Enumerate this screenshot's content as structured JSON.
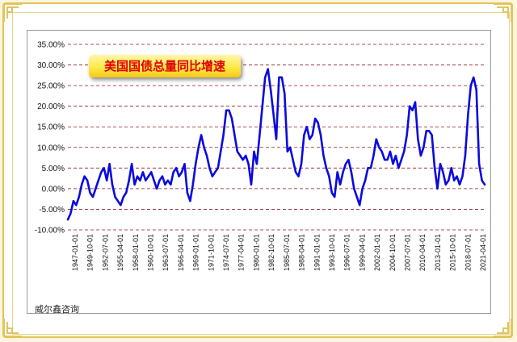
{
  "source_label": "威尔鑫咨询",
  "colors": {
    "line": "#0a0adf",
    "title_text": "#e00000",
    "gridline": "#8b1a1a",
    "badge_fill": "#ffe84a",
    "frame": "#e2c35e"
  },
  "chart_data": {
    "type": "line",
    "title": "美国国债总量同比增速",
    "xlabel": "",
    "ylabel": "",
    "ylim": [
      -0.1,
      0.35
    ],
    "ytick_values": [
      -0.1,
      -0.05,
      0.0,
      0.05,
      0.1,
      0.15,
      0.2,
      0.25,
      0.3,
      0.35
    ],
    "ytick_labels": [
      "-10.00%",
      "-5.00%",
      "0.00%",
      "5.00%",
      "10.00%",
      "15.00%",
      "20.00%",
      "25.00%",
      "30.00%",
      "35.00%"
    ],
    "xtick_labels": [
      "1947-01-01",
      "1949-10-01",
      "1952-07-01",
      "1955-04-01",
      "1958-01-01",
      "1960-10-01",
      "1963-07-01",
      "1966-04-01",
      "1969-01-01",
      "1971-10-01",
      "1974-07-01",
      "1977-04-01",
      "1980-01-01",
      "1982-10-01",
      "1985-07-01",
      "1988-04-01",
      "1991-01-01",
      "1993-10-01",
      "1996-07-01",
      "1999-04-01",
      "2002-01-01",
      "2004-10-01",
      "2007-07-01",
      "2010-04-01",
      "2013-01-01",
      "2015-10-01",
      "2018-07-01",
      "2021-04-01"
    ],
    "grid": true,
    "legend": "none",
    "series": [
      {
        "x": [
          1947.0,
          1947.5,
          1948.0,
          1948.5,
          1949.0,
          1949.5,
          1950.0,
          1950.5,
          1951.0,
          1951.5,
          1952.0,
          1952.5,
          1953.0,
          1953.5,
          1954.0,
          1954.5,
          1955.0,
          1955.5,
          1956.0,
          1956.5,
          1957.0,
          1957.5,
          1958.0,
          1958.5,
          1959.0,
          1959.5,
          1960.0,
          1960.5,
          1961.0,
          1961.5,
          1962.0,
          1962.5,
          1963.0,
          1963.5,
          1964.0,
          1964.5,
          1965.0,
          1965.5,
          1966.0,
          1966.5,
          1967.0,
          1967.5,
          1968.0,
          1968.5,
          1969.0,
          1969.5,
          1970.0,
          1970.5,
          1971.0,
          1971.5,
          1972.0,
          1972.5,
          1973.0,
          1973.5,
          1974.0,
          1974.5,
          1975.0,
          1975.5,
          1976.0,
          1976.5,
          1977.0,
          1977.5,
          1978.0,
          1978.5,
          1979.0,
          1979.5,
          1980.0,
          1980.5,
          1981.0,
          1981.5,
          1982.0,
          1982.5,
          1983.0,
          1983.5,
          1984.0,
          1984.5,
          1985.0,
          1985.5,
          1986.0,
          1986.5,
          1987.0,
          1987.5,
          1988.0,
          1988.5,
          1989.0,
          1989.5,
          1990.0,
          1990.5,
          1991.0,
          1991.5,
          1992.0,
          1992.5,
          1993.0,
          1993.5,
          1994.0,
          1994.5,
          1995.0,
          1995.5,
          1996.0,
          1996.5,
          1997.0,
          1997.5,
          1998.0,
          1998.5,
          1999.0,
          1999.5,
          2000.0,
          2000.5,
          2001.0,
          2001.5,
          2002.0,
          2002.5,
          2003.0,
          2003.5,
          2004.0,
          2004.5,
          2005.0,
          2005.5,
          2006.0,
          2006.5,
          2007.0,
          2007.5,
          2008.0,
          2008.5,
          2009.0,
          2009.5,
          2010.0,
          2010.5,
          2011.0,
          2011.5,
          2012.0,
          2012.5,
          2013.0,
          2013.5,
          2014.0,
          2014.5,
          2015.0,
          2015.5,
          2016.0,
          2016.5,
          2017.0,
          2017.5,
          2018.0,
          2018.5,
          2019.0,
          2019.5,
          2020.0,
          2020.5,
          2021.0,
          2021.5,
          2022.0
        ],
        "values": [
          -0.075,
          -0.06,
          -0.03,
          -0.04,
          -0.02,
          0.01,
          0.03,
          0.02,
          -0.01,
          -0.02,
          0.0,
          0.02,
          0.04,
          0.05,
          0.02,
          0.06,
          0.01,
          -0.02,
          -0.03,
          -0.04,
          -0.02,
          -0.01,
          0.02,
          0.06,
          0.01,
          0.03,
          0.02,
          0.04,
          0.02,
          0.03,
          0.04,
          0.02,
          0.0,
          0.02,
          0.03,
          0.01,
          0.02,
          0.01,
          0.04,
          0.05,
          0.03,
          0.04,
          0.06,
          -0.01,
          -0.03,
          0.01,
          0.06,
          0.1,
          0.13,
          0.1,
          0.08,
          0.05,
          0.03,
          0.04,
          0.05,
          0.09,
          0.13,
          0.19,
          0.19,
          0.17,
          0.13,
          0.09,
          0.08,
          0.07,
          0.08,
          0.06,
          0.01,
          0.09,
          0.06,
          0.13,
          0.2,
          0.27,
          0.29,
          0.24,
          0.18,
          0.12,
          0.27,
          0.27,
          0.23,
          0.09,
          0.1,
          0.07,
          0.04,
          0.03,
          0.06,
          0.13,
          0.15,
          0.12,
          0.13,
          0.17,
          0.16,
          0.13,
          0.08,
          0.05,
          0.03,
          -0.01,
          -0.02,
          0.04,
          0.01,
          0.04,
          0.06,
          0.07,
          0.04,
          0.0,
          -0.02,
          -0.04,
          0.0,
          0.02,
          0.05,
          0.05,
          0.08,
          0.12,
          0.1,
          0.09,
          0.07,
          0.07,
          0.09,
          0.06,
          0.08,
          0.05,
          0.07,
          0.09,
          0.13,
          0.2,
          0.19,
          0.21,
          0.12,
          0.08,
          0.1,
          0.14,
          0.14,
          0.13,
          0.05,
          0.0,
          0.06,
          0.04,
          0.01,
          0.02,
          0.05,
          0.02,
          0.03,
          0.01,
          0.03,
          0.08,
          0.18,
          0.25,
          0.27,
          0.24,
          0.06,
          0.02,
          0.01
        ],
        "color": "#0a0adf"
      }
    ]
  }
}
